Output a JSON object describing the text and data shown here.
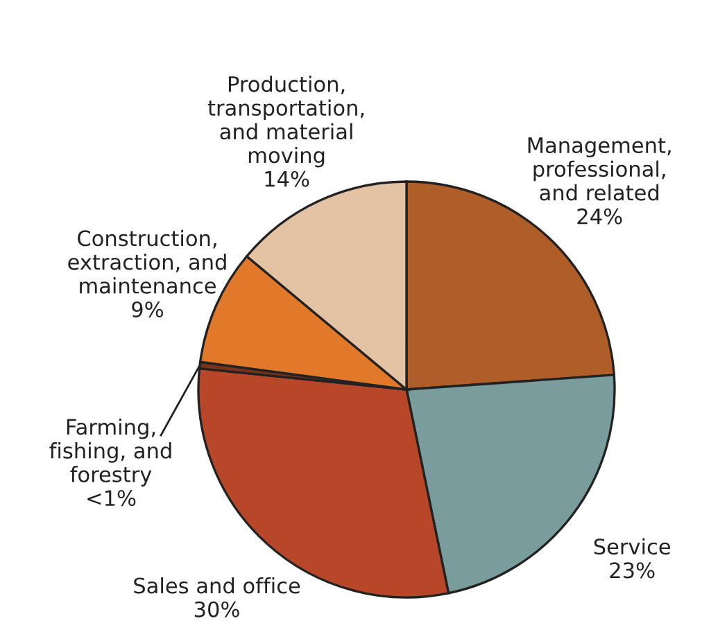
{
  "chart_data": {
    "type": "pie",
    "categories": [
      "Management,\nprofessional,\nand related",
      "Service",
      "Sales and office",
      "Farming,\nfishing, and\nforestry",
      "Construction,\nextraction, and\nmaintenance",
      "Production,\ntransportation,\nand material\nmoving"
    ],
    "values": [
      24,
      23,
      30,
      0.5,
      9,
      14
    ],
    "value_labels": [
      "24%",
      "23%",
      "30%",
      "<1%",
      "9%",
      "14%"
    ],
    "colors": [
      "#b05e27",
      "#7a9c9c",
      "#b8472a",
      "#7a3318",
      "#e07a2a",
      "#e3c3a3"
    ]
  }
}
